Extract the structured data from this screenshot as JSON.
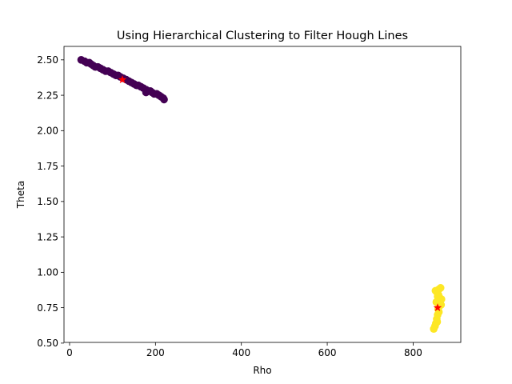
{
  "chart_data": {
    "type": "scatter",
    "title": "Using Hierarchical Clustering to Filter Hough Lines",
    "xlabel": "Rho",
    "ylabel": "Theta",
    "xlim": [
      -13,
      911
    ],
    "ylim": [
      0.505,
      2.595
    ],
    "xticks": [
      0,
      200,
      400,
      600,
      800
    ],
    "yticks": [
      0.5,
      0.75,
      1.0,
      1.25,
      1.5,
      1.75,
      2.0,
      2.25,
      2.5
    ],
    "grid": false,
    "series": [
      {
        "color": "#440154",
        "points": [
          [
            27,
            2.5
          ],
          [
            35,
            2.49
          ],
          [
            40,
            2.48
          ],
          [
            46,
            2.48
          ],
          [
            50,
            2.47
          ],
          [
            55,
            2.46
          ],
          [
            60,
            2.45
          ],
          [
            66,
            2.45
          ],
          [
            72,
            2.44
          ],
          [
            78,
            2.43
          ],
          [
            84,
            2.42
          ],
          [
            90,
            2.42
          ],
          [
            96,
            2.41
          ],
          [
            102,
            2.4
          ],
          [
            108,
            2.39
          ],
          [
            113,
            2.39
          ],
          [
            118,
            2.38
          ],
          [
            125,
            2.37
          ],
          [
            132,
            2.36
          ],
          [
            138,
            2.35
          ],
          [
            144,
            2.34
          ],
          [
            150,
            2.33
          ],
          [
            156,
            2.32
          ],
          [
            160,
            2.32
          ],
          [
            166,
            2.31
          ],
          [
            172,
            2.3
          ],
          [
            178,
            2.29
          ],
          [
            183,
            2.28
          ],
          [
            178,
            2.27
          ],
          [
            188,
            2.28
          ],
          [
            192,
            2.27
          ],
          [
            197,
            2.26
          ],
          [
            203,
            2.26
          ],
          [
            208,
            2.25
          ],
          [
            213,
            2.24
          ],
          [
            218,
            2.23
          ],
          [
            220,
            2.22
          ]
        ]
      },
      {
        "color": "#fde725",
        "points": [
          [
            848,
            0.6
          ],
          [
            851,
            0.62
          ],
          [
            853,
            0.64
          ],
          [
            856,
            0.65
          ],
          [
            855,
            0.67
          ],
          [
            857,
            0.7
          ],
          [
            860,
            0.72
          ],
          [
            858,
            0.74
          ],
          [
            861,
            0.76
          ],
          [
            863,
            0.78
          ],
          [
            858,
            0.8
          ],
          [
            862,
            0.82
          ],
          [
            866,
            0.81
          ],
          [
            859,
            0.84
          ],
          [
            855,
            0.86
          ],
          [
            852,
            0.87
          ],
          [
            860,
            0.88
          ],
          [
            864,
            0.89
          ],
          [
            865,
            0.77
          ],
          [
            854,
            0.79
          ],
          [
            857,
            0.83
          ]
        ]
      }
    ],
    "centroids": {
      "color": "#ff0000",
      "points": [
        [
          123,
          2.36
        ],
        [
          857,
          0.75
        ]
      ]
    }
  }
}
